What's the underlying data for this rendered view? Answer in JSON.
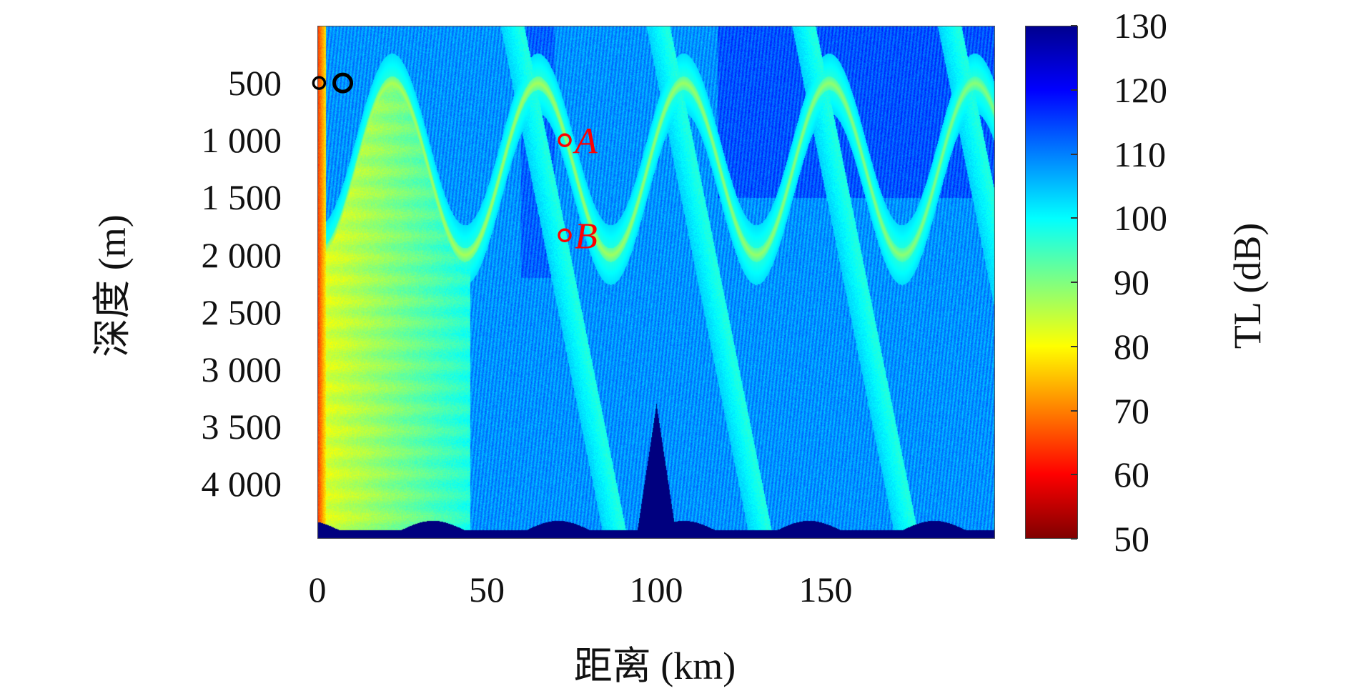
{
  "chart_data": {
    "type": "heatmap",
    "title": "",
    "xlabel": "距离 (km)",
    "ylabel": "深度 (m)",
    "colorbar_label": "TL (dB)",
    "xlim": [
      0,
      200
    ],
    "ylim": [
      4480,
      0
    ],
    "x_ticks": [
      "0",
      "50",
      "100",
      "150"
    ],
    "x_tick_values": [
      0,
      50,
      100,
      150
    ],
    "y_ticks": [
      "500",
      "1 000",
      "1 500",
      "2 000",
      "2 500",
      "3 000",
      "3 500",
      "4 000"
    ],
    "y_tick_values": [
      500,
      1000,
      1500,
      2000,
      2500,
      3000,
      3500,
      4000
    ],
    "colorbar_ticks": [
      "130",
      "120",
      "110",
      "100",
      "90",
      "80",
      "70",
      "60",
      "50"
    ],
    "colorbar_tick_values": [
      130,
      120,
      110,
      100,
      90,
      80,
      70,
      60,
      50
    ],
    "clim": [
      50,
      130
    ],
    "colormap": "jet",
    "convergence_zone_period_km": 43,
    "seamount": {
      "range_km": 100,
      "peak_depth_m": 3300
    },
    "seabed_depth_m": 4400,
    "markers": [
      {
        "label": "",
        "range_km": 0.5,
        "depth_m": 500,
        "color": "#000000"
      },
      {
        "label": "",
        "range_km": 7.5,
        "depth_m": 500,
        "color": "#000000"
      },
      {
        "label": "A",
        "range_km": 73,
        "depth_m": 1000,
        "color": "#ff0000"
      },
      {
        "label": "B",
        "range_km": 73,
        "depth_m": 1830,
        "color": "#ff0000"
      }
    ]
  }
}
